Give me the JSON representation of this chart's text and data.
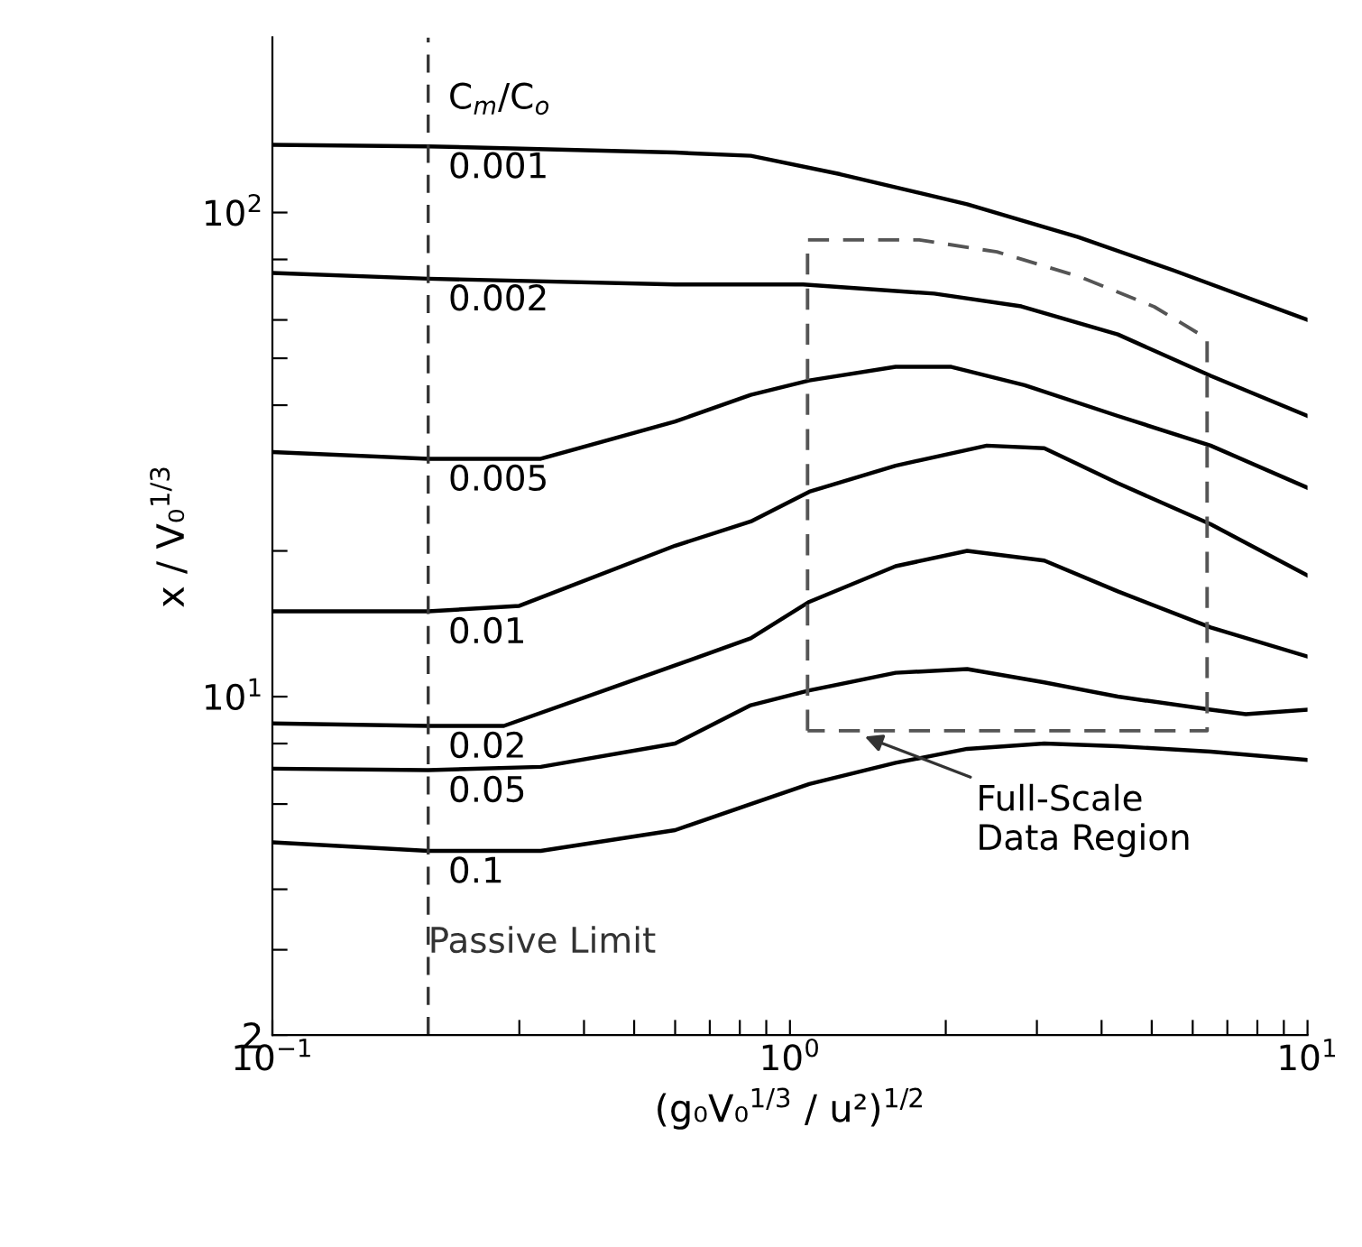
{
  "chart_data": {
    "type": "line",
    "log": "xy",
    "xlabel": "(g₀V₀$^{1/3}$ / u²)$^{1/2}$",
    "ylabel": "x / V₀$^{1/3}$",
    "legend_title": "C$_{m}$/C$_{o}$",
    "xlim": [
      0.1,
      10
    ],
    "ylim": [
      2,
      230
    ],
    "xticks": [
      {
        "value": 0.1,
        "label": "10$^{−1}$"
      },
      {
        "value": 0.2,
        "label": null
      },
      {
        "value": 0.3,
        "label": null
      },
      {
        "value": 0.4,
        "label": null
      },
      {
        "value": 0.5,
        "label": null
      },
      {
        "value": 0.6,
        "label": null
      },
      {
        "value": 0.7,
        "label": null
      },
      {
        "value": 0.8,
        "label": null
      },
      {
        "value": 0.9,
        "label": null
      },
      {
        "value": 1,
        "label": "10$^{0}$"
      },
      {
        "value": 2,
        "label": null
      },
      {
        "value": 3,
        "label": null
      },
      {
        "value": 4,
        "label": null
      },
      {
        "value": 5,
        "label": null
      },
      {
        "value": 6,
        "label": null
      },
      {
        "value": 7,
        "label": null
      },
      {
        "value": 8,
        "label": null
      },
      {
        "value": 9,
        "label": null
      },
      {
        "value": 10,
        "label": "10$^{1}$"
      }
    ],
    "yticks": [
      2,
      {
        "value": 3,
        "label": null
      },
      {
        "value": 4,
        "label": null
      },
      {
        "value": 6,
        "label": null
      },
      {
        "value": 8,
        "label": null
      },
      {
        "value": 10,
        "label": "10$^{1}$"
      },
      {
        "value": 20,
        "label": null
      },
      {
        "value": 40,
        "label": null
      },
      {
        "value": 50,
        "label": null
      },
      {
        "value": 60,
        "label": null
      },
      {
        "value": 80,
        "label": null
      },
      {
        "value": 100,
        "label": "10$^{2}$"
      }
    ],
    "grid": false,
    "marker": "none",
    "line_style": "solid",
    "series": [
      {
        "name": "0.001",
        "color": "#000000",
        "x": [
          0.1,
          0.2,
          0.6,
          0.84,
          1.25,
          2.2,
          3.6,
          5.5,
          10
        ],
        "values": [
          138,
          137,
          133,
          131,
          120,
          104,
          89,
          76,
          60
        ]
      },
      {
        "name": "0.002",
        "color": "#000000",
        "x": [
          0.1,
          0.2,
          0.6,
          1.06,
          1.9,
          2.8,
          4.3,
          6.5,
          10
        ],
        "values": [
          75,
          73,
          71,
          71,
          68,
          64,
          56,
          46,
          38
        ]
      },
      {
        "name": "0.005",
        "color": "#000000",
        "x": [
          0.1,
          0.2,
          0.33,
          0.6,
          0.84,
          1.09,
          1.6,
          2.05,
          2.84,
          4.3,
          6.5,
          10
        ],
        "values": [
          32,
          31,
          31,
          37,
          42,
          45,
          48,
          48,
          44,
          38,
          33,
          27
        ]
      },
      {
        "name": "0.01",
        "color": "#000000",
        "x": [
          0.1,
          0.2,
          0.3,
          0.6,
          0.84,
          1.09,
          1.6,
          2.4,
          3.1,
          4.3,
          6.5,
          10
        ],
        "values": [
          15,
          15,
          15.4,
          20.5,
          23,
          26.5,
          30,
          33,
          32.6,
          27.6,
          22.7,
          17.8
        ]
      },
      {
        "name": "0.02",
        "color": "#000000",
        "x": [
          0.1,
          0.2,
          0.28,
          0.6,
          0.84,
          1.09,
          1.6,
          2.2,
          3.1,
          4.3,
          6.5,
          10
        ],
        "values": [
          8.8,
          8.7,
          8.7,
          11.6,
          13.2,
          15.7,
          18.6,
          20,
          19.1,
          16.5,
          13.9,
          12.1
        ]
      },
      {
        "name": "0.05",
        "color": "#000000",
        "x": [
          0.1,
          0.2,
          0.33,
          0.6,
          0.84,
          1.09,
          1.6,
          2.2,
          3.1,
          4.3,
          6.5,
          7.6,
          10
        ],
        "values": [
          7.1,
          7.05,
          7.16,
          8.0,
          9.6,
          10.3,
          11.2,
          11.4,
          10.7,
          10,
          9.4,
          9.2,
          9.4
        ]
      },
      {
        "name": "0.1",
        "color": "#000000",
        "x": [
          0.1,
          0.2,
          0.33,
          0.6,
          0.84,
          1.09,
          1.6,
          2.2,
          3.1,
          4.3,
          6.5,
          10
        ],
        "values": [
          5.0,
          4.8,
          4.8,
          5.3,
          6.0,
          6.6,
          7.3,
          7.8,
          8.0,
          7.9,
          7.7,
          7.4
        ]
      }
    ],
    "ref_lines": [
      {
        "axis": "x",
        "value": 0.2,
        "label": "Passive Limit",
        "color": "#333333",
        "line_style": "dashed"
      }
    ],
    "annotations": [
      "Full-Scale\nData Region"
    ]
  }
}
